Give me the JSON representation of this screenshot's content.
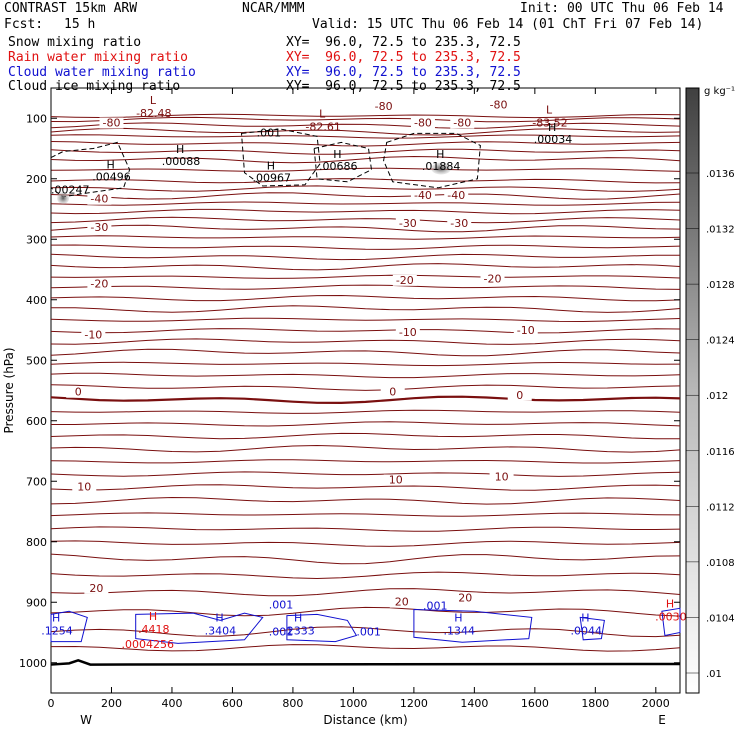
{
  "header": {
    "model": "CONTRAST 15km ARW",
    "center": "NCAR/MMM",
    "init": "Init: 00 UTC Thu 06 Feb 14",
    "fcst_label": "Fcst:",
    "fcst_value": "15 h",
    "valid": "Valid: 15 UTC Thu 06 Feb 14 (01 ChT Fri 07 Feb 14)"
  },
  "fields": [
    {
      "name": "Snow mixing ratio",
      "xy": "XY=  96.0, 72.5 to 235.3, 72.5",
      "color": "#000000"
    },
    {
      "name": "Rain water mixing ratio",
      "xy": "XY=  96.0, 72.5 to 235.3, 72.5",
      "color": "#e01010"
    },
    {
      "name": "Cloud water mixing ratio",
      "xy": "XY=  96.0, 72.5 to 235.3, 72.5",
      "color": "#1010d0"
    },
    {
      "name": "Cloud ice mixing ratio",
      "xy": "XY=  96.0, 72.5 to 235.3, 72.5",
      "color": "#000000"
    }
  ],
  "chart_data": {
    "type": "contour",
    "xlabel": "Distance (km)",
    "ylabel": "Pressure (hPa)",
    "xlim": [
      0,
      2080
    ],
    "ylim": [
      1050,
      50
    ],
    "x_ticks": [
      0,
      200,
      400,
      600,
      800,
      1000,
      1200,
      1400,
      1600,
      1800,
      2000
    ],
    "y_ticks": [
      100,
      200,
      300,
      400,
      500,
      600,
      700,
      800,
      900,
      1000
    ],
    "direction_labels": {
      "left": "W",
      "right": "E"
    },
    "colorbar": {
      "unit": "g kg⁻¹",
      "ticks": [
        ".0136",
        ".0132",
        ".0128",
        ".0124",
        ".012",
        ".0116",
        ".0112",
        ".0108",
        ".0104",
        ".01"
      ]
    },
    "temperature_contour_labels": [
      {
        "label": "-80",
        "x": 200,
        "p": 112
      },
      {
        "label": "-80",
        "x": 1100,
        "p": 85
      },
      {
        "label": "-80",
        "x": 1480,
        "p": 82
      },
      {
        "label": "-80",
        "x": 1230,
        "p": 112
      },
      {
        "label": "-80",
        "x": 1360,
        "p": 112
      },
      {
        "label": "-40",
        "x": 160,
        "p": 238
      },
      {
        "label": "-40",
        "x": 1230,
        "p": 232
      },
      {
        "label": "-40",
        "x": 1340,
        "p": 232
      },
      {
        "label": "-30",
        "x": 160,
        "p": 285
      },
      {
        "label": "-30",
        "x": 1180,
        "p": 278
      },
      {
        "label": "-30",
        "x": 1350,
        "p": 278
      },
      {
        "label": "-20",
        "x": 160,
        "p": 378
      },
      {
        "label": "-20",
        "x": 1170,
        "p": 372
      },
      {
        "label": "-20",
        "x": 1460,
        "p": 370
      },
      {
        "label": "-10",
        "x": 140,
        "p": 462
      },
      {
        "label": "-10",
        "x": 1180,
        "p": 458
      },
      {
        "label": "-10",
        "x": 1570,
        "p": 455
      },
      {
        "label": "0",
        "x": 90,
        "p": 557
      },
      {
        "label": "0",
        "x": 1130,
        "p": 557
      },
      {
        "label": "0",
        "x": 1550,
        "p": 562
      },
      {
        "label": "10",
        "x": 110,
        "p": 714
      },
      {
        "label": "10",
        "x": 1140,
        "p": 702
      },
      {
        "label": "10",
        "x": 1490,
        "p": 697
      },
      {
        "label": "20",
        "x": 150,
        "p": 881
      },
      {
        "label": "20",
        "x": 1160,
        "p": 904
      },
      {
        "label": "20",
        "x": 1370,
        "p": 897
      }
    ],
    "temperature_lows": [
      {
        "label": "-82.48",
        "x": 340,
        "p": 88
      },
      {
        "label": "-82.61",
        "x": 900,
        "p": 110
      },
      {
        "label": "-83.52",
        "x": 1650,
        "p": 104
      }
    ],
    "cloud_ice_highs": [
      {
        "label": ".00088",
        "x": 430,
        "p": 164
      },
      {
        "label": ".00496",
        "x": 200,
        "p": 190
      },
      {
        "label": ".00967",
        "x": 730,
        "p": 191
      },
      {
        "label": ".00686",
        "x": 950,
        "p": 172
      },
      {
        "label": ".01884",
        "x": 1290,
        "p": 172
      },
      {
        "label": ".00034",
        "x": 1660,
        "p": 128
      }
    ],
    "ice_contour_labels": [
      {
        "label": ".001",
        "x": 680,
        "p": 130
      },
      {
        "label": ".00247",
        "x": 0,
        "p": 224
      }
    ],
    "cloud_water_highs": [
      {
        "label": ".1254",
        "x": 20,
        "p": 940
      },
      {
        "label": ".3404",
        "x": 560,
        "p": 940
      },
      {
        "label": ".2333",
        "x": 820,
        "p": 940
      },
      {
        "label": ".1344",
        "x": 1350,
        "p": 940
      },
      {
        "label": ".0044",
        "x": 1770,
        "p": 940
      }
    ],
    "cloud_water_contour_labels": [
      {
        "label": ".001",
        "x": 720,
        "p": 910
      },
      {
        "label": ".001",
        "x": 720,
        "p": 955
      },
      {
        "label": ".001",
        "x": 1010,
        "p": 955
      },
      {
        "label": ".001",
        "x": 1230,
        "p": 912
      }
    ],
    "rain_highs": [
      {
        "label": ".4418",
        "x": 340,
        "p": 938
      },
      {
        "label": ".0004256",
        "x": 320,
        "p": 962
      },
      {
        "label": ".0030",
        "x": 2050,
        "p": 917
      }
    ],
    "surface_pressure_hPa": 1003
  }
}
